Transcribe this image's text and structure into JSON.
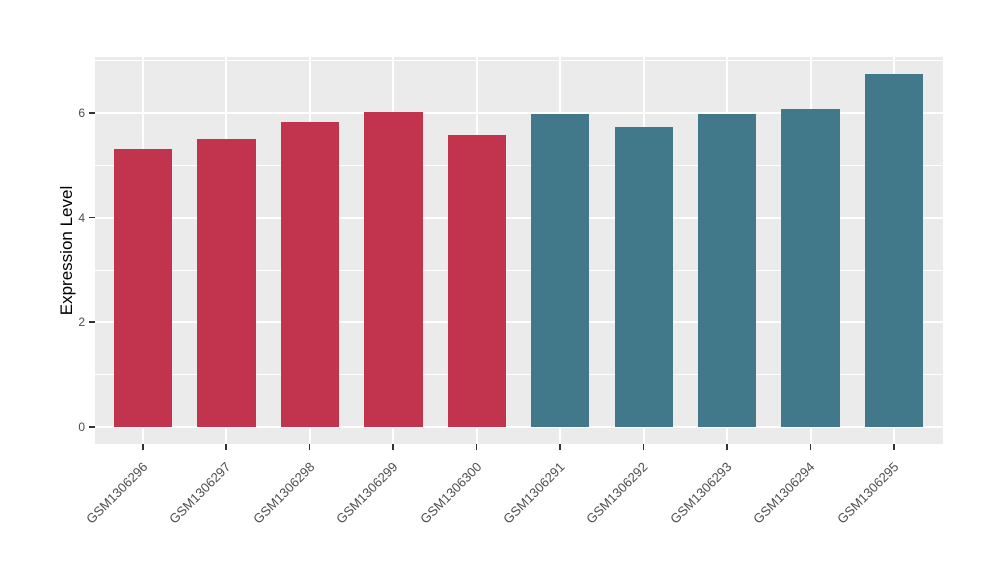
{
  "figure": {
    "background": "#ffffff"
  },
  "chart_data": {
    "type": "bar",
    "title": "",
    "xlabel": "",
    "ylabel": "Expression Level",
    "categories": [
      "GSM1306296",
      "GSM1306297",
      "GSM1306298",
      "GSM1306299",
      "GSM1306300",
      "GSM1306291",
      "GSM1306292",
      "GSM1306293",
      "GSM1306294",
      "GSM1306295"
    ],
    "values": [
      5.31,
      5.5,
      5.83,
      6.02,
      5.58,
      5.98,
      5.73,
      5.98,
      6.08,
      6.75
    ],
    "bar_colors": [
      "#C2334E",
      "#C2334E",
      "#C2334E",
      "#C2334E",
      "#C2334E",
      "#41798A",
      "#41798A",
      "#41798A",
      "#41798A",
      "#41798A"
    ],
    "yticks": [
      0,
      2,
      4,
      6
    ],
    "ytick_labels": [
      "0",
      "2",
      "4",
      "6"
    ],
    "yminor": [
      1,
      3,
      5,
      7
    ],
    "ylim": [
      -0.34,
      7.07
    ],
    "grid": true,
    "legend_position": "none",
    "panel_bg": "#EBEBEB",
    "grid_color": "#FFFFFF",
    "tick_color": "#333333",
    "x_tick_rotation_deg": 45,
    "bar_width_fraction": 0.7
  }
}
